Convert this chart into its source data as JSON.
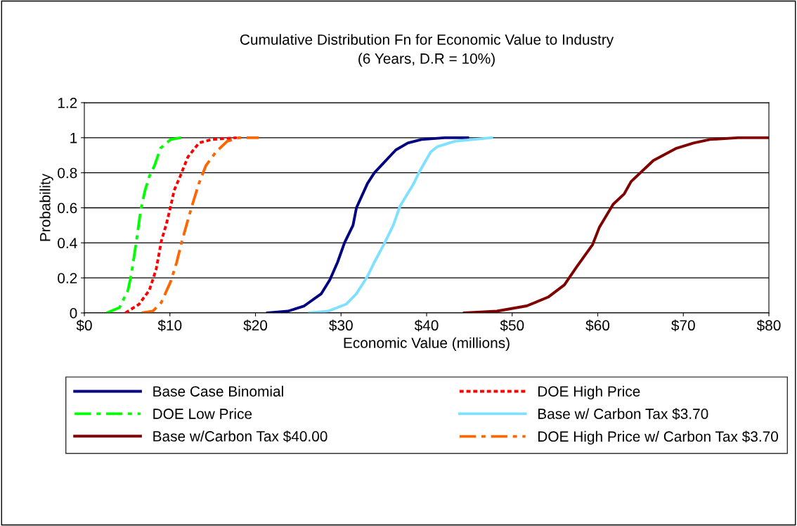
{
  "chart_data": {
    "type": "line",
    "title": "Cumulative Distribution Fn for Economic Value to Industry\n(6 Years, D.R = 10%)",
    "xlabel": "Economic Value (millions)",
    "ylabel": "Probability",
    "xlim": [
      0,
      80
    ],
    "ylim": [
      0,
      1.2
    ],
    "xticks": [
      {
        "value": 0,
        "label": "$0"
      },
      {
        "value": 10,
        "label": "$10"
      },
      {
        "value": 20,
        "label": "$20"
      },
      {
        "value": 30,
        "label": "$30"
      },
      {
        "value": 40,
        "label": "$40"
      },
      {
        "value": 50,
        "label": "$50"
      },
      {
        "value": 60,
        "label": "$60"
      },
      {
        "value": 70,
        "label": "$70"
      },
      {
        "value": 80,
        "label": "$80"
      }
    ],
    "yticks": [
      0,
      0.2,
      0.4,
      0.6,
      0.8,
      1,
      1.2
    ],
    "grid": "y",
    "legend": "bottom",
    "marker": "none",
    "series": [
      {
        "name": "Base Case Binomial",
        "color": "#000080",
        "line_style": "solid",
        "x": [
          21.4,
          23.8,
          25.7,
          27.7,
          28.7,
          29.6,
          30.4,
          31.4,
          31.8,
          33.1,
          33.9,
          36.4,
          37.8,
          39.4,
          42.1,
          44.8
        ],
        "values": [
          0,
          0.01,
          0.04,
          0.11,
          0.19,
          0.29,
          0.4,
          0.5,
          0.6,
          0.74,
          0.8,
          0.93,
          0.97,
          0.99,
          1.0,
          1.0
        ]
      },
      {
        "name": "DOE High Price",
        "color": "#ff0000",
        "line_style": "dotted",
        "x": [
          4.8,
          6.4,
          7.6,
          8.4,
          9.0,
          9.6,
          10.1,
          10.5,
          11.2,
          12.1,
          13.4,
          14.9,
          17.8
        ],
        "values": [
          0,
          0.05,
          0.13,
          0.25,
          0.41,
          0.51,
          0.61,
          0.7,
          0.78,
          0.89,
          0.97,
          0.99,
          1.0
        ]
      },
      {
        "name": "DOE Low Price",
        "color": "#00ff00",
        "line_style": "dashed",
        "x": [
          2.6,
          4.1,
          5.1,
          5.5,
          5.9,
          6.2,
          6.6,
          7.1,
          7.6,
          8.2,
          8.9,
          10.1,
          11.3
        ],
        "values": [
          0,
          0.03,
          0.13,
          0.22,
          0.35,
          0.45,
          0.59,
          0.7,
          0.78,
          0.84,
          0.94,
          0.99,
          1.0
        ]
      },
      {
        "name": "Base w/ Carbon Tax $3.70",
        "color": "#80e0ff",
        "line_style": "solid",
        "x": [
          26.3,
          28.5,
          30.6,
          31.8,
          33.1,
          33.9,
          35.1,
          36.1,
          36.9,
          38.4,
          39.2,
          40.5,
          41.3,
          43.3,
          47.6
        ],
        "values": [
          0,
          0.01,
          0.05,
          0.11,
          0.21,
          0.29,
          0.4,
          0.5,
          0.61,
          0.73,
          0.81,
          0.92,
          0.95,
          0.98,
          1.0
        ]
      },
      {
        "name": "Base w/Carbon Tax $40.00",
        "color": "#800000",
        "line_style": "solid",
        "x": [
          44.4,
          48.2,
          51.7,
          54.2,
          56.1,
          57.5,
          59.4,
          60.2,
          61.8,
          63.1,
          63.9,
          66.5,
          69.2,
          71.2,
          73.1,
          76.4,
          79.9
        ],
        "values": [
          0,
          0.01,
          0.04,
          0.09,
          0.16,
          0.26,
          0.39,
          0.49,
          0.62,
          0.68,
          0.75,
          0.87,
          0.94,
          0.97,
          0.99,
          1.0,
          1.0
        ]
      },
      {
        "name": "DOE High Price w/ Carbon Tax $3.70",
        "color": "#ff6600",
        "line_style": "dashed",
        "x": [
          6.7,
          8.0,
          9.0,
          10.1,
          10.8,
          11.3,
          12.1,
          12.7,
          13.4,
          14.2,
          15.4,
          16.7,
          18.1,
          20.4
        ],
        "values": [
          0,
          0.01,
          0.06,
          0.18,
          0.29,
          0.39,
          0.53,
          0.63,
          0.74,
          0.84,
          0.92,
          0.98,
          1.0,
          1.0
        ]
      }
    ]
  }
}
